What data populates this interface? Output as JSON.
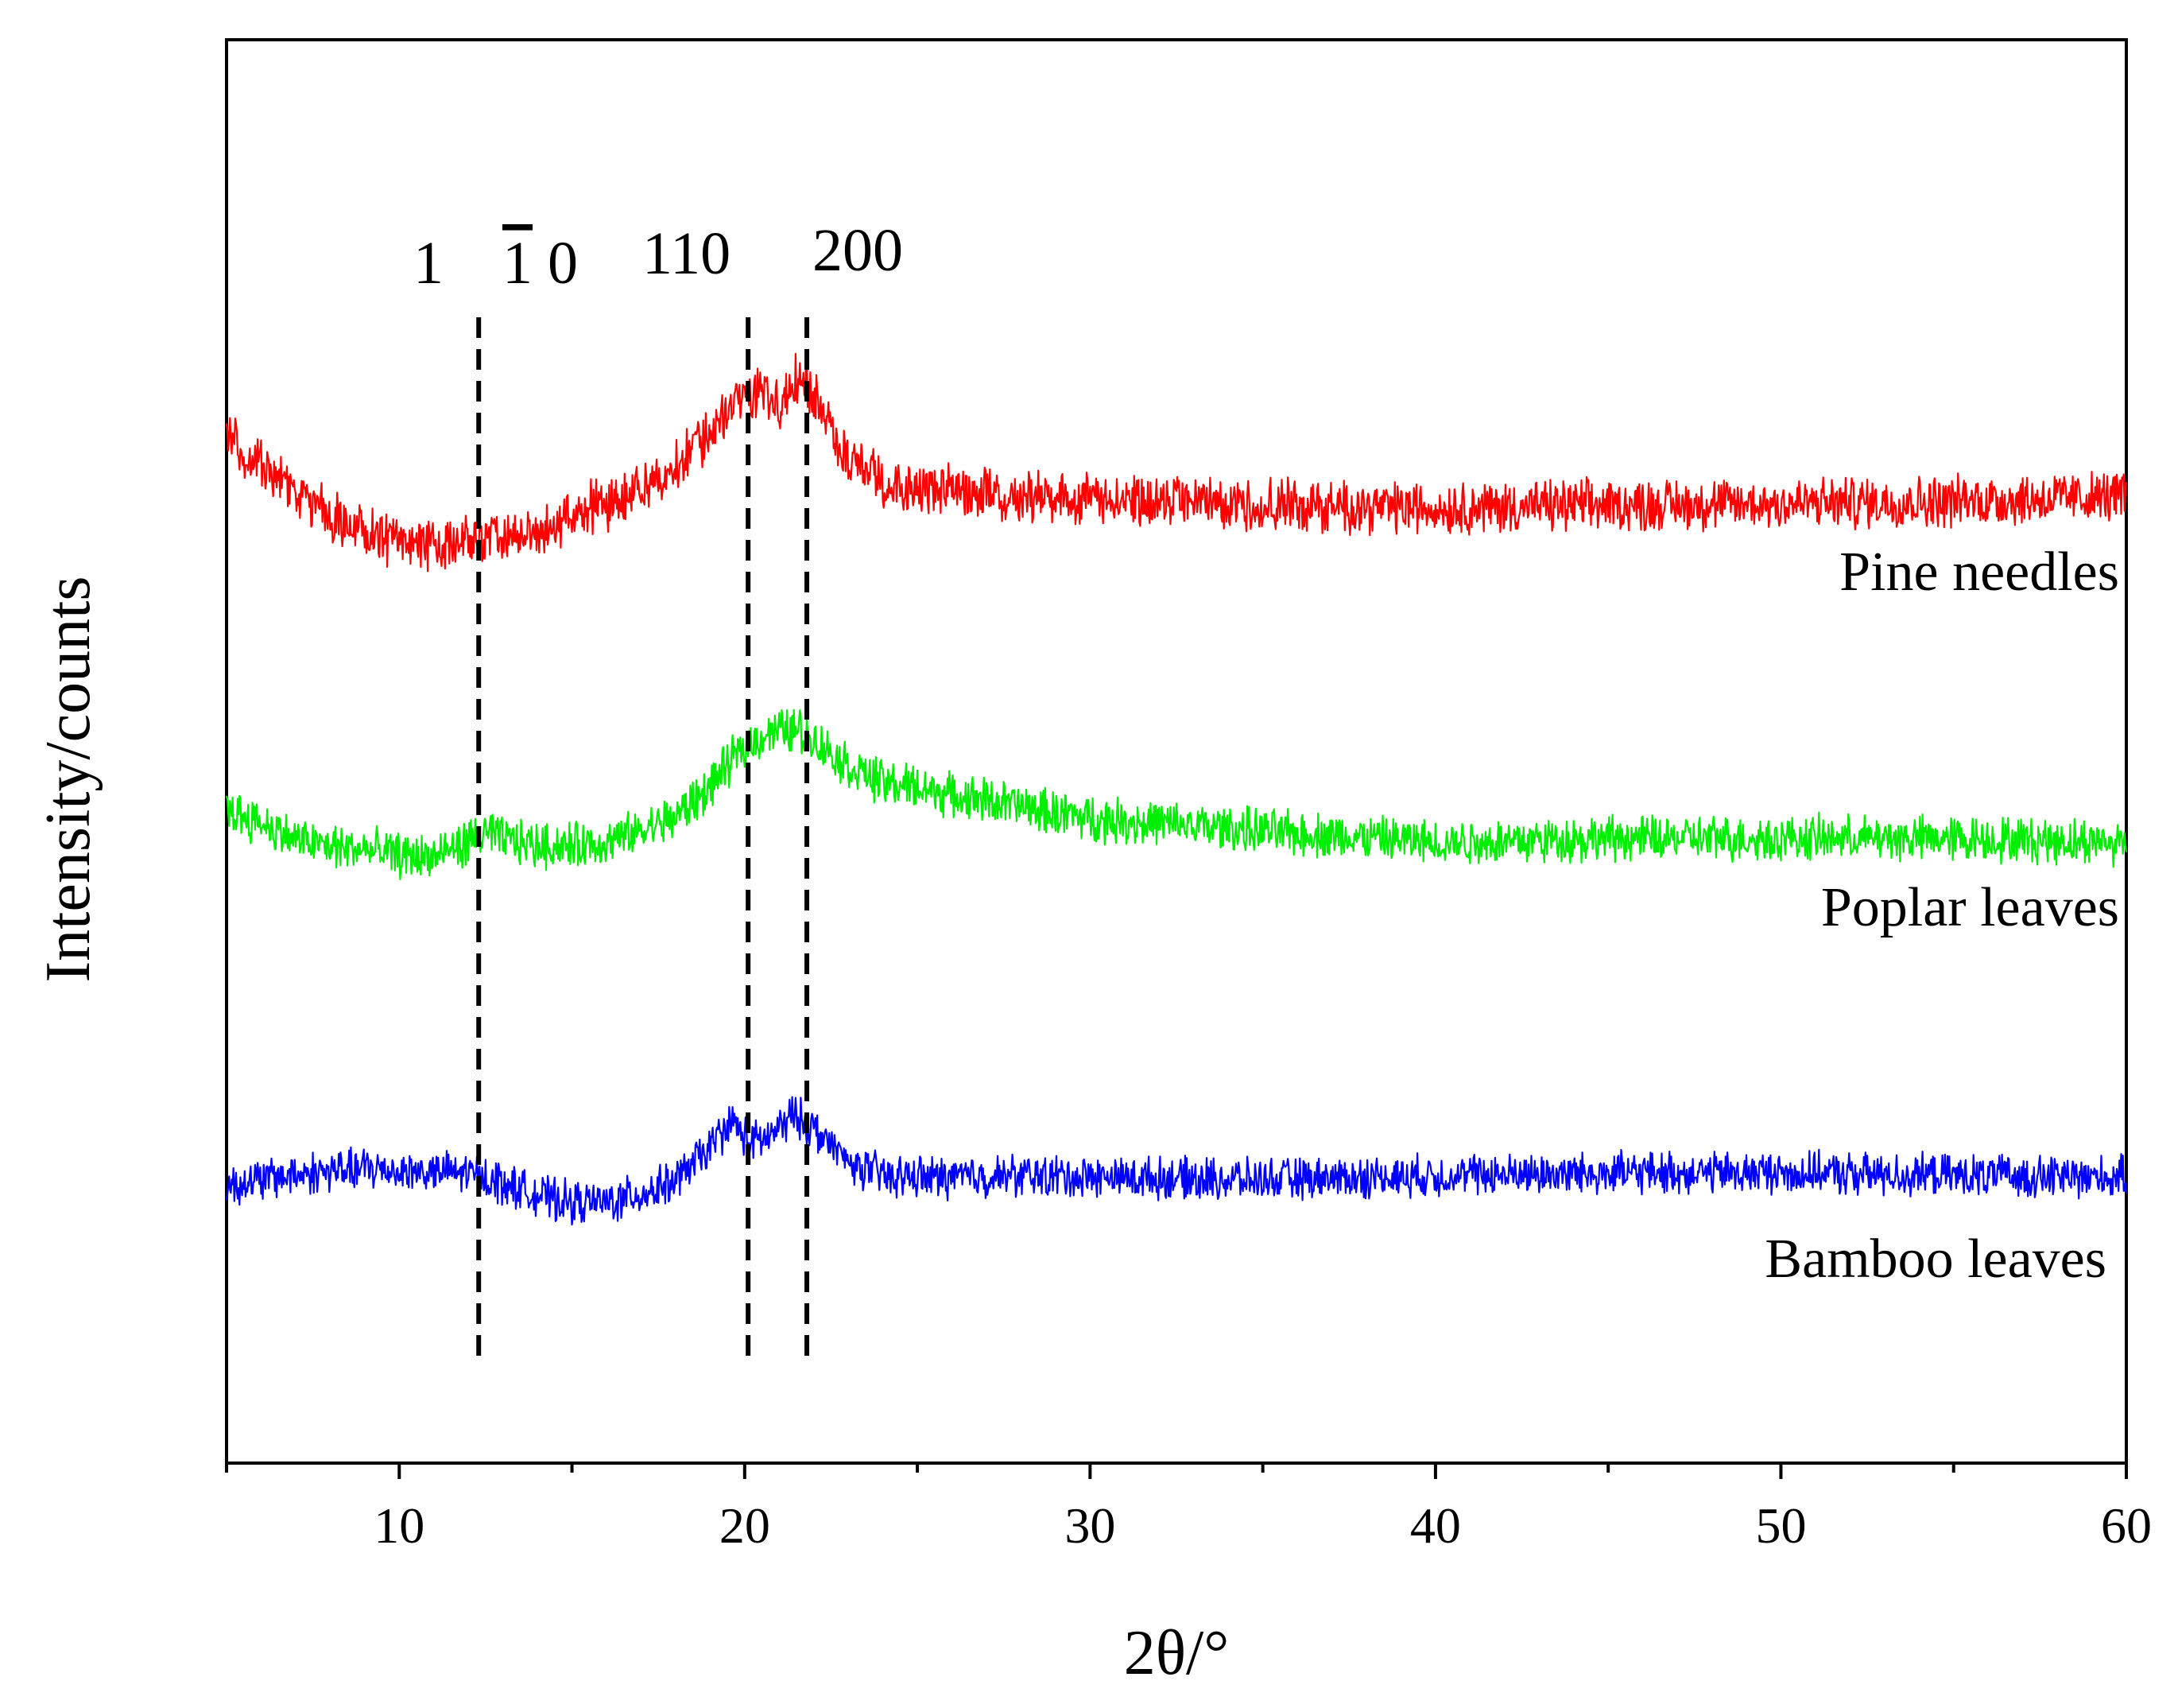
{
  "chart_data": {
    "type": "line",
    "title": "",
    "xlabel": "2θ/°",
    "ylabel": "Intensity/counts",
    "xlim": [
      5,
      60
    ],
    "ylim": [
      0,
      100
    ],
    "x_ticks": [
      10,
      20,
      30,
      40,
      50,
      60
    ],
    "x_minor_ticks": [
      5,
      15,
      25,
      35,
      45,
      55
    ],
    "y_ticks_shown": false,
    "grid": false,
    "legend": "none",
    "series": [
      {
        "name": "Pine needles",
        "color": "#ff0000",
        "noise": 1.5,
        "points": [
          [
            5,
            72
          ],
          [
            6,
            70
          ],
          [
            7,
            68
          ],
          [
            8,
            66.5
          ],
          [
            9,
            65.3
          ],
          [
            10,
            64.8
          ],
          [
            11,
            64.5
          ],
          [
            12,
            64.8
          ],
          [
            13,
            64.9
          ],
          [
            14,
            65.3
          ],
          [
            15,
            66.6
          ],
          [
            16,
            67.4
          ],
          [
            17,
            68.4
          ],
          [
            18,
            70
          ],
          [
            19,
            72.5
          ],
          [
            20,
            75
          ],
          [
            20.5,
            75.5
          ],
          [
            21,
            74.5
          ],
          [
            21.7,
            76.5
          ],
          [
            22.2,
            74
          ],
          [
            23,
            70.5
          ],
          [
            24,
            69
          ],
          [
            25,
            68.6
          ],
          [
            26,
            68.2
          ],
          [
            27,
            68
          ],
          [
            28,
            67.9
          ],
          [
            29,
            67.8
          ],
          [
            30,
            67.7
          ],
          [
            35,
            67.3
          ],
          [
            40,
            67.1
          ],
          [
            45,
            67.3
          ],
          [
            50,
            67.4
          ],
          [
            55,
            67.6
          ],
          [
            60,
            67.9
          ]
        ]
      },
      {
        "name": "Poplar leaves",
        "color": "#00ee00",
        "noise": 1.3,
        "points": [
          [
            5,
            46
          ],
          [
            6,
            45
          ],
          [
            7,
            43.8
          ],
          [
            8,
            43.3
          ],
          [
            9,
            43.1
          ],
          [
            10,
            42.7
          ],
          [
            11,
            42.6
          ],
          [
            12,
            43.6
          ],
          [
            12.5,
            44.3
          ],
          [
            13,
            43.8
          ],
          [
            14,
            43.4
          ],
          [
            15,
            43.4
          ],
          [
            16,
            43.6
          ],
          [
            17,
            44.4
          ],
          [
            18,
            45.4
          ],
          [
            19,
            47.5
          ],
          [
            20,
            50.4
          ],
          [
            20.7,
            51.3
          ],
          [
            21.5,
            51.6
          ],
          [
            22,
            50.8
          ],
          [
            23,
            49
          ],
          [
            24,
            47.8
          ],
          [
            25,
            47.5
          ],
          [
            26,
            46.9
          ],
          [
            27,
            46.6
          ],
          [
            28,
            46.1
          ],
          [
            30,
            45.3
          ],
          [
            35,
            44.4
          ],
          [
            40,
            43.6
          ],
          [
            45,
            43.9
          ],
          [
            50,
            43.9
          ],
          [
            55,
            43.9
          ],
          [
            60,
            43.6
          ]
        ]
      },
      {
        "name": "Bamboo leaves",
        "color": "#0000ff",
        "noise": 1.2,
        "points": [
          [
            5,
            19.5
          ],
          [
            7,
            20.3
          ],
          [
            9,
            20.7
          ],
          [
            11,
            20.4
          ],
          [
            12,
            20.4
          ],
          [
            13,
            19.7
          ],
          [
            14,
            18.8
          ],
          [
            15,
            18.3
          ],
          [
            16,
            18.3
          ],
          [
            17,
            18.9
          ],
          [
            18,
            19.8
          ],
          [
            19,
            22.2
          ],
          [
            19.6,
            24
          ],
          [
            20.2,
            22.5
          ],
          [
            20.8,
            23
          ],
          [
            21.4,
            24.5
          ],
          [
            22,
            23.5
          ],
          [
            22.5,
            22.3
          ],
          [
            23,
            21.1
          ],
          [
            24,
            20.2
          ],
          [
            25,
            20.1
          ],
          [
            26,
            20.1
          ],
          [
            28,
            20.2
          ],
          [
            30,
            20.1
          ],
          [
            35,
            19.9
          ],
          [
            40,
            20.2
          ],
          [
            45,
            20.4
          ],
          [
            50,
            20.4
          ],
          [
            55,
            20.2
          ],
          [
            60,
            20.1
          ]
        ]
      }
    ],
    "reference_lines": [
      {
        "x": 12.3,
        "label_main": "1",
        "label_overbar": "1",
        "label_tail": "0"
      },
      {
        "x": 20.1,
        "label": "110"
      },
      {
        "x": 21.8,
        "label": "200"
      }
    ]
  }
}
